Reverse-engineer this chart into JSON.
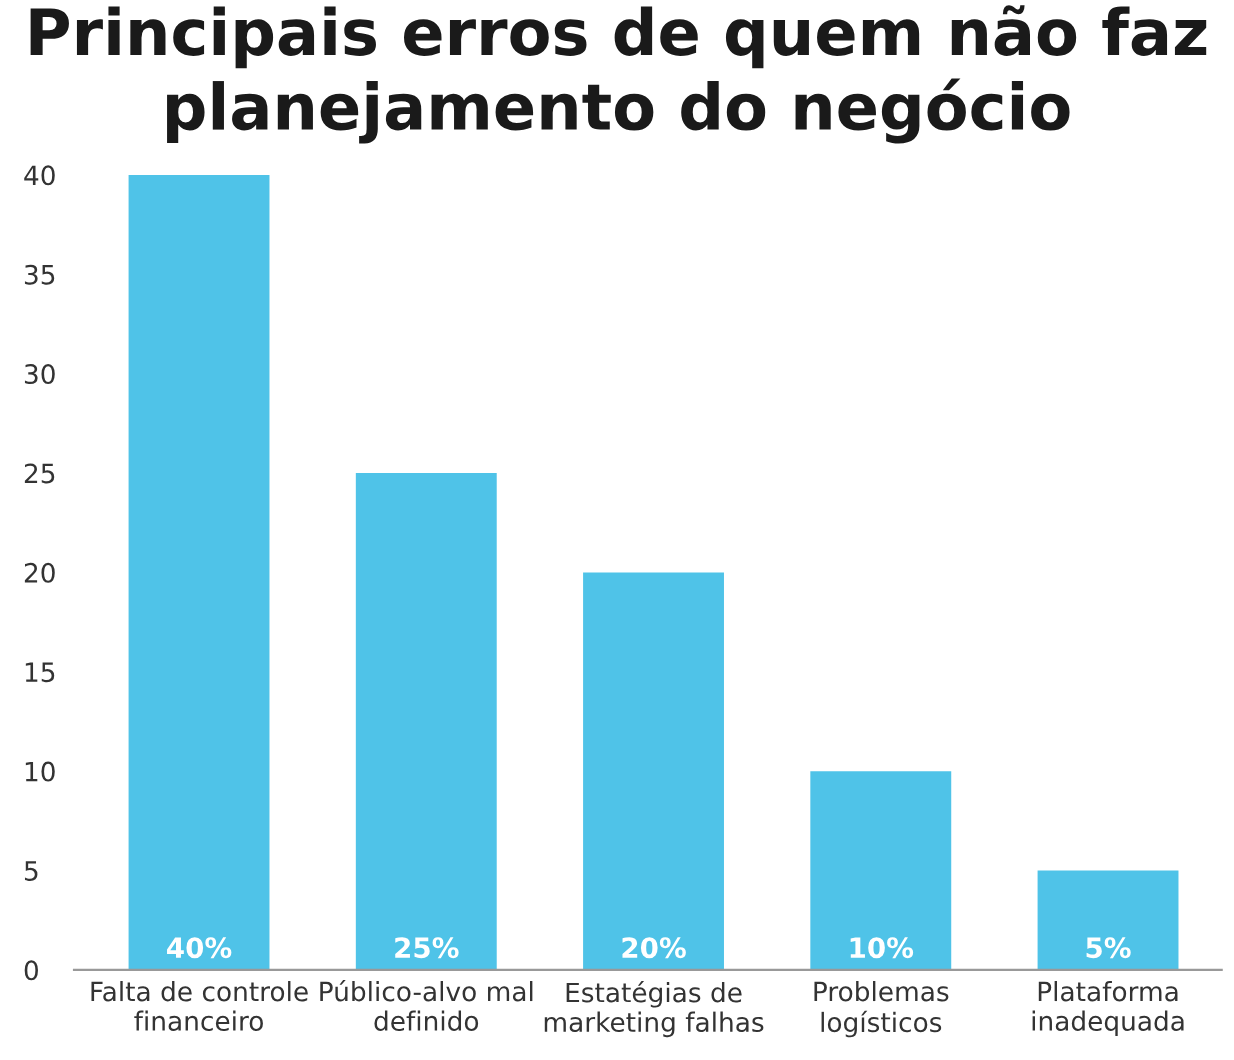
{
  "chart_data": {
    "type": "bar",
    "title": "Principais erros de quem não faz planejamento do negócio",
    "categories": [
      "Falta de controle\nfinanceiro",
      "Público-alvo mal\ndefinido",
      "Estatégias de\nmarketing falhas",
      "Problemas\nlogísticos",
      "Plataforma\ninadequada"
    ],
    "values": [
      40,
      25,
      20,
      10,
      5
    ],
    "value_labels": [
      "40%",
      "25%",
      "20%",
      "10%",
      "5%"
    ],
    "color": "#4fc3e8",
    "ylim": [
      0,
      40
    ],
    "yticks": [
      0,
      5,
      10,
      15,
      20,
      25,
      30,
      35,
      40
    ],
    "grid": false
  }
}
